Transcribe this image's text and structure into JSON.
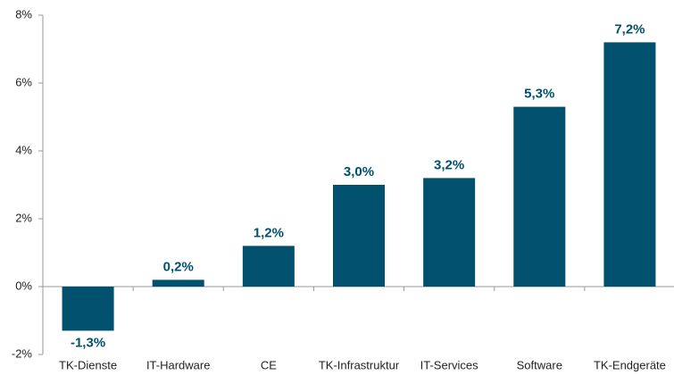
{
  "chart_data": {
    "type": "bar",
    "categories": [
      "TK-Dienste",
      "IT-Hardware",
      "CE",
      "TK-Infrastruktur",
      "IT-Services",
      "Software",
      "TK-Endgeräte"
    ],
    "values": [
      -1.3,
      0.2,
      1.2,
      3.0,
      3.2,
      5.3,
      7.2
    ],
    "value_labels": [
      "-1,3%",
      "0,2%",
      "1,2%",
      "3,0%",
      "3,2%",
      "5,3%",
      "7,2%"
    ],
    "color": "#00506e",
    "ylim": [
      -2,
      8
    ],
    "yticks": [
      {
        "value": -2,
        "label": "-2%"
      },
      {
        "value": 0,
        "label": "0%"
      },
      {
        "value": 2,
        "label": "2%"
      },
      {
        "value": 4,
        "label": "4%"
      },
      {
        "value": 6,
        "label": "6%"
      },
      {
        "value": 8,
        "label": "8%"
      }
    ],
    "grid": false
  }
}
